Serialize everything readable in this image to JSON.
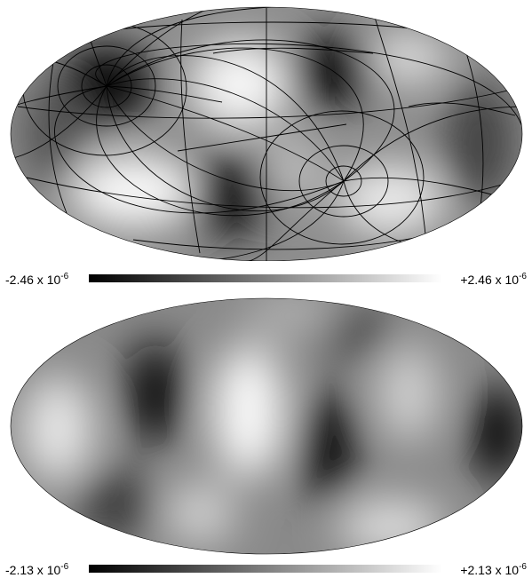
{
  "maps": [
    {
      "id": "top",
      "has_graticule": true,
      "colorbar": {
        "min_label": {
          "mantissa": "-2.46 x 10",
          "exponent": "-6"
        },
        "max_label": {
          "mantissa": "+2.46 x 10",
          "exponent": "-6"
        },
        "colors": [
          "#000000",
          "#ffffff"
        ]
      }
    },
    {
      "id": "bottom",
      "has_graticule": false,
      "colorbar": {
        "min_label": {
          "mantissa": "-2.13 x 10",
          "exponent": "-6"
        },
        "max_label": {
          "mantissa": "+2.13 x 10",
          "exponent": "-6"
        },
        "colors": [
          "#000000",
          "#ffffff"
        ]
      }
    }
  ]
}
